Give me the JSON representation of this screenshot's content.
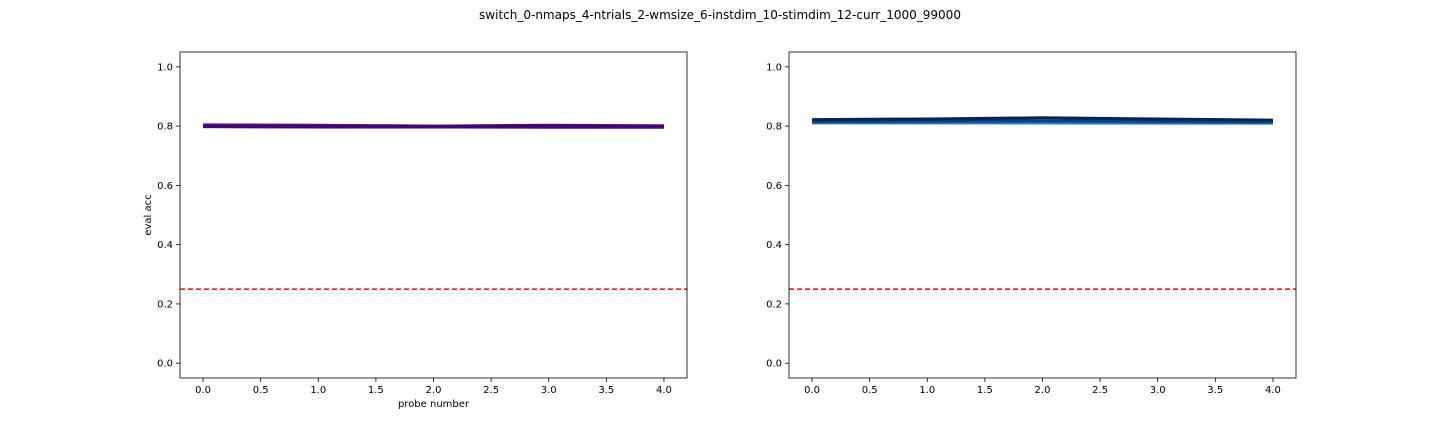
{
  "figure": {
    "suptitle": "switch_0-nmaps_4-ntrials_2-wmsize_6-instdim_10-stimdim_12-curr_1000_99000"
  },
  "chart_data": [
    {
      "type": "line",
      "title": "",
      "xlabel": "probe number",
      "ylabel": "eval acc",
      "xlim": [
        -0.2,
        4.2
      ],
      "ylim": [
        -0.05,
        1.05
      ],
      "x_ticks": [
        "0.0",
        "0.5",
        "1.0",
        "1.5",
        "2.0",
        "2.5",
        "3.0",
        "3.5",
        "4.0"
      ],
      "y_ticks": [
        "0.0",
        "0.2",
        "0.4",
        "0.6",
        "0.8",
        "1.0"
      ],
      "grid": false,
      "x": [
        0,
        1,
        2,
        3,
        4
      ],
      "series": [
        {
          "color": "#5a1f78",
          "values": [
            0.804,
            0.803,
            0.8,
            0.803,
            0.801
          ]
        },
        {
          "color": "#3b0a57",
          "values": [
            0.8,
            0.8,
            0.799,
            0.801,
            0.798
          ]
        },
        {
          "color": "#4b0082",
          "values": [
            0.798,
            0.797,
            0.797,
            0.796,
            0.796
          ]
        }
      ],
      "reference_line": {
        "y": 0.25,
        "color": "#ff0000",
        "style": "dashed"
      }
    },
    {
      "type": "line",
      "title": "",
      "xlabel": "",
      "ylabel": "",
      "xlim": [
        -0.2,
        4.2
      ],
      "ylim": [
        -0.05,
        1.05
      ],
      "x_ticks": [
        "0.0",
        "0.5",
        "1.0",
        "1.5",
        "2.0",
        "2.5",
        "3.0",
        "3.5",
        "4.0"
      ],
      "y_ticks": [
        "0.0",
        "0.2",
        "0.4",
        "0.6",
        "0.8",
        "1.0"
      ],
      "grid": false,
      "x": [
        0,
        1,
        2,
        3,
        4
      ],
      "series": [
        {
          "color": "#1f77b4",
          "values": [
            0.811,
            0.811,
            0.811,
            0.81,
            0.81
          ]
        },
        {
          "color": "#0b3d91",
          "values": [
            0.815,
            0.817,
            0.818,
            0.816,
            0.814
          ]
        },
        {
          "color": "#07264f",
          "values": [
            0.822,
            0.824,
            0.828,
            0.824,
            0.82
          ]
        }
      ],
      "reference_line": {
        "y": 0.25,
        "color": "#ff0000",
        "style": "dashed"
      }
    }
  ]
}
